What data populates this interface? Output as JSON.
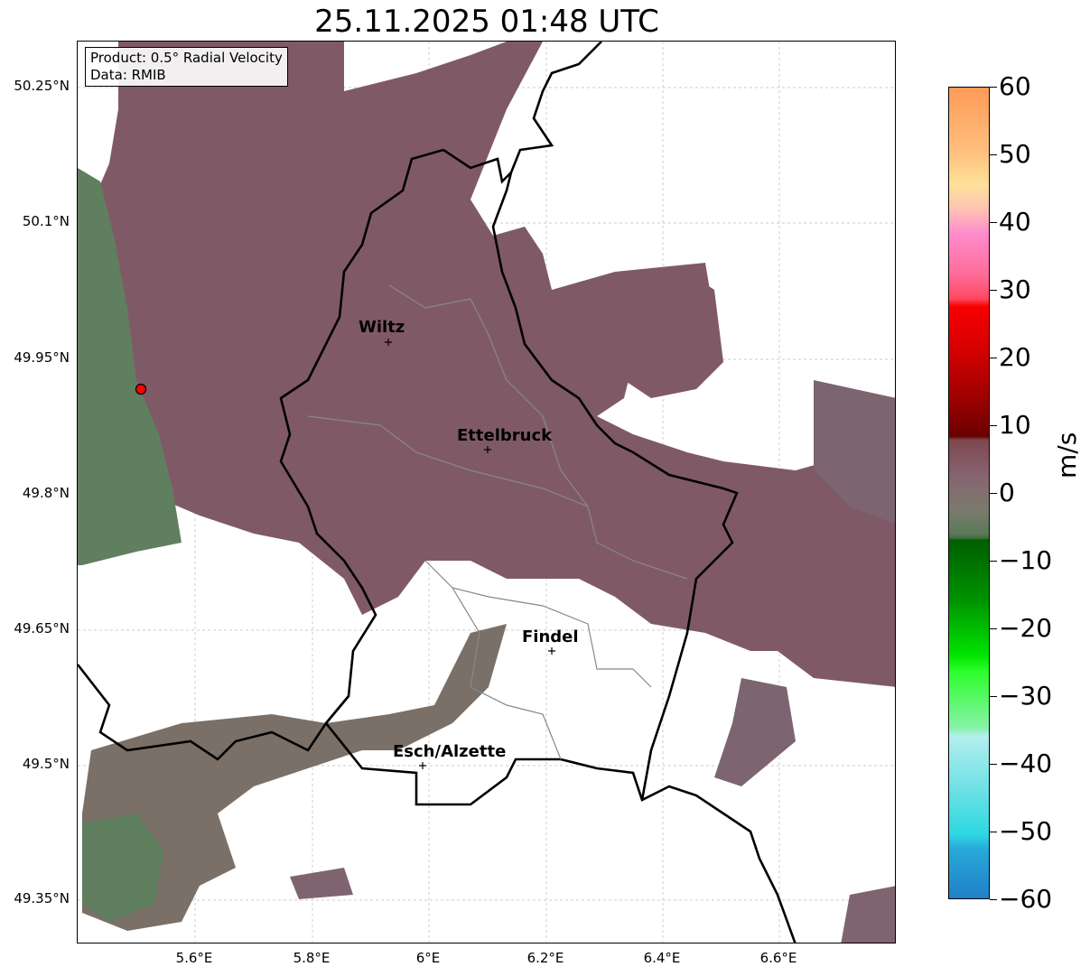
{
  "title": "25.11.2025 01:48 UTC",
  "info": {
    "product": "Product: 0.5° Radial Velocity",
    "data": "Data: RMIB"
  },
  "lat_ticks": [
    "50.25°N",
    "50.1°N",
    "49.95°N",
    "49.8°N",
    "49.65°N",
    "49.5°N",
    "49.35°N"
  ],
  "lon_ticks": [
    "5.6°E",
    "5.8°E",
    "6°E",
    "6.2°E",
    "6.4°E",
    "6.6°E"
  ],
  "cities": [
    "Wiltz",
    "Ettelbruck",
    "Findel",
    "Esch/Alzette"
  ],
  "colorbar": {
    "unit": "m/s",
    "ticks": [
      "60",
      "50",
      "40",
      "30",
      "20",
      "10",
      "0",
      "−10",
      "−20",
      "−30",
      "−40",
      "−50",
      "−60"
    ],
    "range": [
      -60,
      60
    ]
  },
  "colors": {
    "echo_positive": "#855763",
    "echo_neutral": "#7f6e72",
    "echo_negative": "#5f7f5f",
    "radar_site": "#ff0000"
  }
}
